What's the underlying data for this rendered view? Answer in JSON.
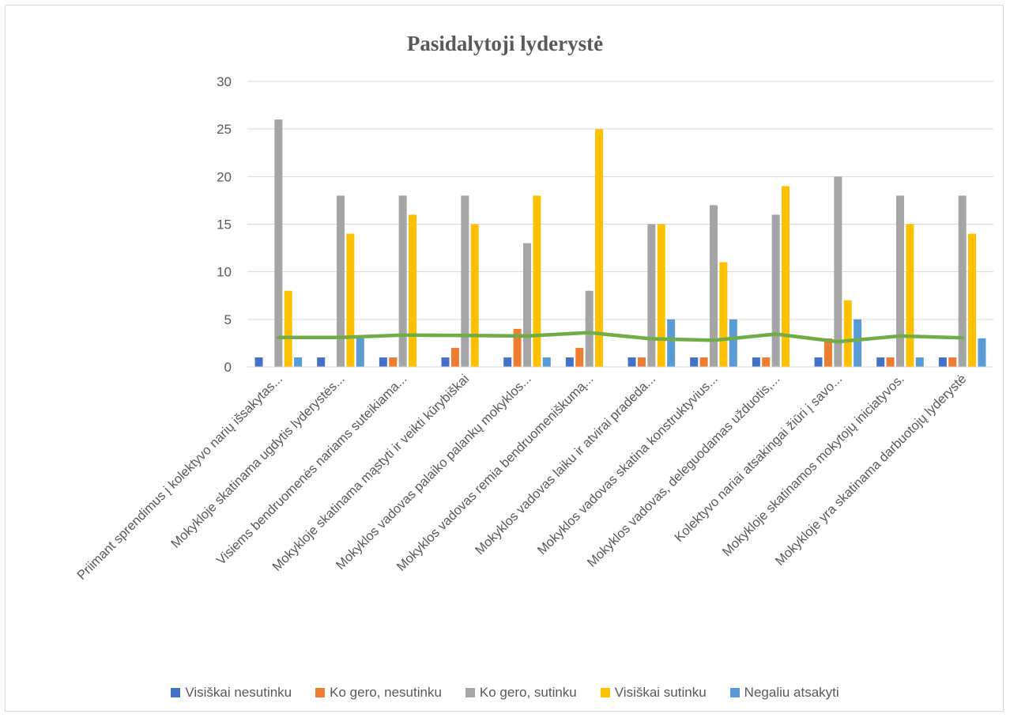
{
  "chart_data": {
    "type": "bar",
    "title": "Pasidalytoji lyderystė",
    "xlabel": "",
    "ylabel": "",
    "ylim": [
      0,
      30
    ],
    "yticks": [
      "0",
      "5",
      "10",
      "15",
      "20",
      "25",
      "30"
    ],
    "grid": true,
    "legend_position": "bottom",
    "categories": [
      "Priimant sprendimus į kolektyvo narių išsakytas...",
      "Mokykloje skatinama ugdytis lyderystės...",
      "Visiems bendruomenės nariams suteikiama...",
      "Mokykloje skatinama mąstyti ir veikti kūrybiškai",
      "Mokyklos vadovas palaiko palankų mokyklos...",
      "Mokyklos vadovas remia bendruomeniškumą...",
      "Mokyklos vadovas laiku ir atvirai pradeda...",
      "Mokyklos vadovas skatina konstruktyvius...",
      "Mokyklos vadovas, deleguodamas užduotis,...",
      "Kolektyvo nariai atsakingai žiūri į savo...",
      "Mokykloje skatinamos mokytojų iniciatyvos.",
      "Mokykloje yra skatinama darbuotojų lyderystė"
    ],
    "series": [
      {
        "name": "Visiškai nesutinku",
        "color": "#4472c4",
        "values": [
          1,
          1,
          1,
          1,
          1,
          1,
          1,
          1,
          1,
          1,
          1,
          1
        ]
      },
      {
        "name": "Ko gero, nesutinku",
        "color": "#ed7d31",
        "values": [
          0,
          0,
          1,
          2,
          4,
          2,
          1,
          1,
          1,
          3,
          1,
          1
        ]
      },
      {
        "name": "Ko gero, sutinku",
        "color": "#a5a5a5",
        "values": [
          26,
          18,
          18,
          18,
          13,
          8,
          15,
          17,
          16,
          20,
          18,
          18
        ]
      },
      {
        "name": "Visiškai sutinku",
        "color": "#ffc000",
        "values": [
          8,
          14,
          16,
          15,
          18,
          25,
          15,
          11,
          19,
          7,
          15,
          14
        ]
      },
      {
        "name": "Negaliu atsakyti",
        "color": "#5b9bd5",
        "values": [
          1,
          3,
          0,
          0,
          1,
          0,
          5,
          5,
          0,
          5,
          1,
          3
        ]
      }
    ],
    "trendline": {
      "color": "#70ad47",
      "values": [
        3.1,
        3.1,
        3.35,
        3.3,
        3.25,
        3.6,
        2.95,
        2.8,
        3.45,
        2.65,
        3.25,
        3.05
      ]
    }
  }
}
